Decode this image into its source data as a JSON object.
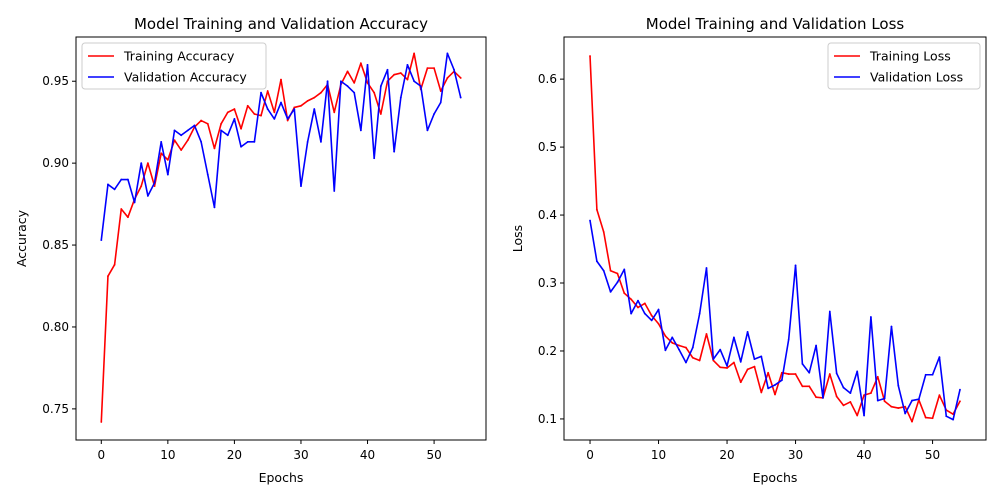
{
  "chart_data": [
    {
      "type": "line",
      "title": "Model Training and Validation Accuracy",
      "xlabel": "Epochs",
      "ylabel": "Accuracy",
      "xlim": [
        -3.8,
        57.8
      ],
      "ylim": [
        0.731,
        0.977
      ],
      "xticks": [
        0,
        10,
        20,
        30,
        40,
        50
      ],
      "yticks": [
        0.75,
        0.8,
        0.85,
        0.9,
        0.95
      ],
      "ytick_labels": [
        "0.75",
        "0.80",
        "0.85",
        "0.90",
        "0.95"
      ],
      "grid": false,
      "legend_position": "upper-left",
      "series": [
        {
          "name": "Training Accuracy",
          "color": "#ff0000",
          "values": [
            0.742,
            0.831,
            0.838,
            0.872,
            0.867,
            0.878,
            0.886,
            0.9,
            0.886,
            0.906,
            0.902,
            0.914,
            0.908,
            0.914,
            0.922,
            0.926,
            0.924,
            0.909,
            0.924,
            0.931,
            0.933,
            0.921,
            0.935,
            0.93,
            0.929,
            0.944,
            0.931,
            0.951,
            0.926,
            0.934,
            0.935,
            0.938,
            0.94,
            0.943,
            0.948,
            0.931,
            0.948,
            0.956,
            0.949,
            0.961,
            0.949,
            0.943,
            0.93,
            0.95,
            0.954,
            0.955,
            0.951,
            0.967,
            0.945,
            0.958,
            0.958,
            0.944,
            0.952,
            0.956,
            0.952
          ]
        },
        {
          "name": "Validation Accuracy",
          "color": "#0000ff",
          "values": [
            0.853,
            0.887,
            0.884,
            0.89,
            0.89,
            0.876,
            0.9,
            0.88,
            0.888,
            0.913,
            0.893,
            0.92,
            0.917,
            0.92,
            0.923,
            0.913,
            0.893,
            0.873,
            0.92,
            0.917,
            0.927,
            0.91,
            0.913,
            0.913,
            0.943,
            0.933,
            0.927,
            0.937,
            0.927,
            0.933,
            0.886,
            0.913,
            0.933,
            0.913,
            0.95,
            0.883,
            0.95,
            0.947,
            0.943,
            0.92,
            0.96,
            0.903,
            0.947,
            0.957,
            0.907,
            0.94,
            0.96,
            0.95,
            0.947,
            0.92,
            0.93,
            0.937,
            0.967,
            0.957,
            0.94
          ]
        }
      ]
    },
    {
      "type": "line",
      "title": "Model Training and Validation Loss",
      "xlabel": "Epochs",
      "ylabel": "Loss",
      "xlim": [
        -3.8,
        57.8
      ],
      "ylim": [
        0.069,
        0.662
      ],
      "xticks": [
        0,
        10,
        20,
        30,
        40,
        50
      ],
      "yticks": [
        0.1,
        0.2,
        0.3,
        0.4,
        0.5,
        0.6
      ],
      "ytick_labels": [
        "0.1",
        "0.2",
        "0.3",
        "0.4",
        "0.5",
        "0.6"
      ],
      "grid": false,
      "legend_position": "upper-right",
      "series": [
        {
          "name": "Training Loss",
          "color": "#ff0000",
          "values": [
            0.634,
            0.408,
            0.375,
            0.318,
            0.314,
            0.285,
            0.276,
            0.264,
            0.27,
            0.252,
            0.24,
            0.222,
            0.212,
            0.208,
            0.205,
            0.19,
            0.186,
            0.225,
            0.186,
            0.176,
            0.175,
            0.183,
            0.154,
            0.173,
            0.177,
            0.139,
            0.168,
            0.136,
            0.168,
            0.166,
            0.166,
            0.148,
            0.148,
            0.132,
            0.131,
            0.166,
            0.133,
            0.12,
            0.125,
            0.105,
            0.135,
            0.138,
            0.162,
            0.126,
            0.118,
            0.116,
            0.118,
            0.096,
            0.128,
            0.102,
            0.101,
            0.135,
            0.113,
            0.107,
            0.126
          ]
        },
        {
          "name": "Validation Loss",
          "color": "#0000ff",
          "values": [
            0.392,
            0.332,
            0.318,
            0.287,
            0.301,
            0.32,
            0.255,
            0.274,
            0.255,
            0.245,
            0.261,
            0.201,
            0.22,
            0.202,
            0.183,
            0.205,
            0.255,
            0.322,
            0.188,
            0.202,
            0.178,
            0.22,
            0.184,
            0.228,
            0.188,
            0.192,
            0.145,
            0.15,
            0.157,
            0.217,
            0.326,
            0.181,
            0.168,
            0.208,
            0.131,
            0.258,
            0.167,
            0.146,
            0.138,
            0.17,
            0.105,
            0.25,
            0.127,
            0.13,
            0.236,
            0.149,
            0.108,
            0.127,
            0.129,
            0.165,
            0.165,
            0.191,
            0.104,
            0.099,
            0.143
          ]
        }
      ]
    }
  ]
}
